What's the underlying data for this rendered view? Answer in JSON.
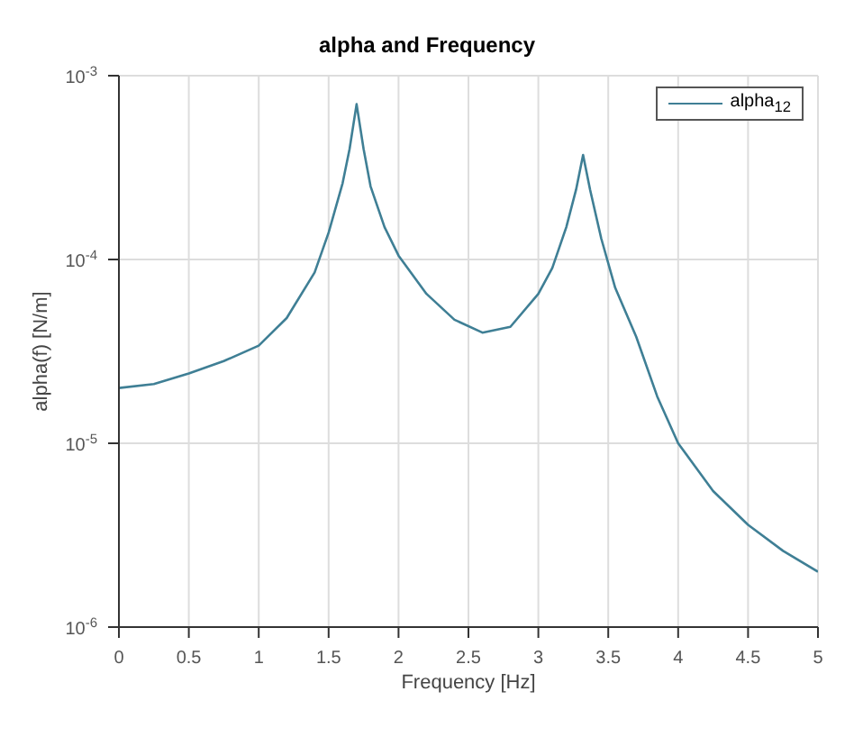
{
  "chart_data": {
    "type": "line",
    "title": "alpha and Frequency",
    "xlabel": "Frequency [Hz]",
    "ylabel": "alpha(f) [N/m]",
    "x": [
      0,
      0.25,
      0.5,
      0.75,
      1.0,
      1.2,
      1.4,
      1.5,
      1.6,
      1.65,
      1.7,
      1.75,
      1.8,
      1.9,
      2.0,
      2.2,
      2.4,
      2.6,
      2.8,
      3.0,
      3.1,
      3.2,
      3.27,
      3.32,
      3.37,
      3.45,
      3.55,
      3.7,
      3.85,
      4.0,
      4.25,
      4.5,
      4.75,
      5.0
    ],
    "series": [
      {
        "name": "alpha$_{12}$",
        "color": "#3f7f95",
        "values": [
          2e-05,
          2.1e-05,
          2.4e-05,
          2.8e-05,
          3.4e-05,
          4.8e-05,
          8.5e-05,
          0.00014,
          0.00026,
          0.0004,
          0.0007,
          0.0004,
          0.00025,
          0.00015,
          0.000105,
          6.5e-05,
          4.7e-05,
          4e-05,
          4.3e-05,
          6.5e-05,
          9e-05,
          0.00015,
          0.00024,
          0.00037,
          0.00024,
          0.00013,
          7e-05,
          3.8e-05,
          1.8e-05,
          1e-05,
          5.5e-06,
          3.6e-06,
          2.6e-06,
          2e-06
        ]
      }
    ],
    "xlim": [
      0,
      5
    ],
    "xticks": [
      0,
      0.5,
      1,
      1.5,
      2,
      2.5,
      3,
      3.5,
      4,
      4.5,
      5
    ],
    "ylim": [
      1e-06,
      0.001
    ],
    "yticks": [
      {
        "value": 1e-06,
        "label": "10$^{-6}$"
      },
      {
        "value": 1e-05,
        "label": "10$^{-5}$"
      },
      {
        "value": 0.0001,
        "label": "10$^{-4}$"
      },
      {
        "value": 0.001,
        "label": "10$^{-3}$"
      }
    ],
    "log": "y",
    "grid": true,
    "legend": "top right",
    "marker": "none",
    "line_style": "solid"
  }
}
